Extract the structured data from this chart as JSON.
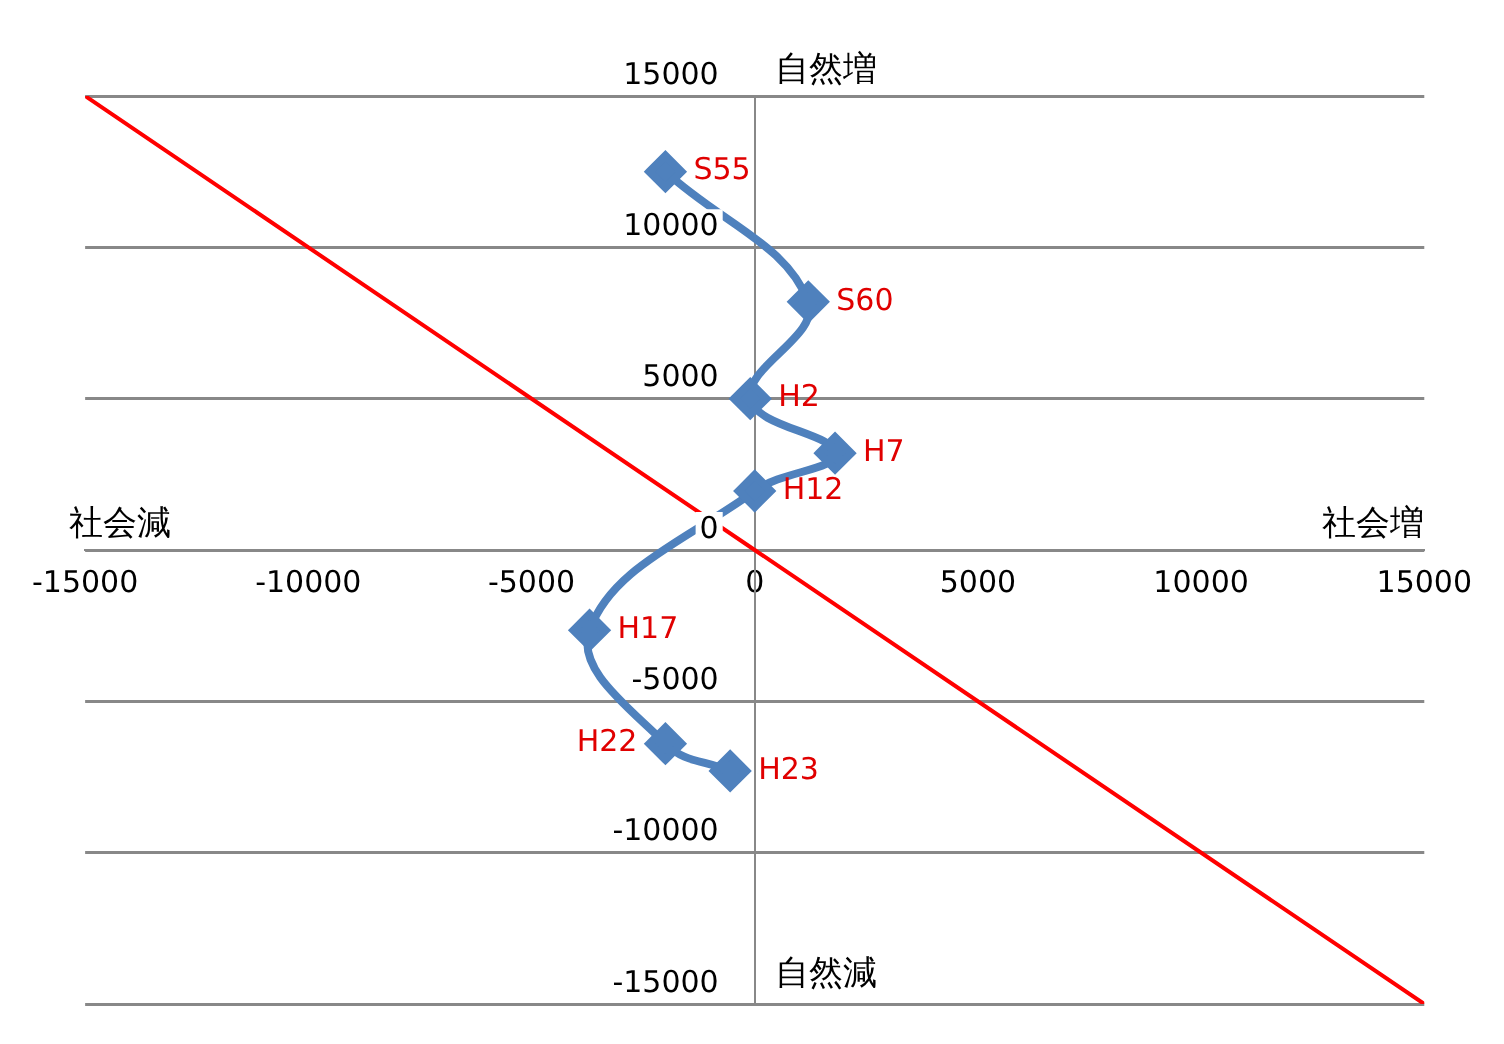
{
  "chart_data": {
    "type": "scatter",
    "xlabel": "社会増",
    "ylabel": "自然増",
    "annotations": [
      "社会減",
      "自然減",
      {
        "text": "S55",
        "x": -2000,
        "y": 12500
      },
      {
        "text": "S60",
        "x": 1200,
        "y": 8200
      },
      {
        "text": "H2",
        "x": -100,
        "y": 5000
      },
      {
        "text": "H7",
        "x": 1800,
        "y": 3200
      },
      {
        "text": "H12",
        "x": 0,
        "y": 1950
      },
      {
        "text": "H17",
        "x": -3700,
        "y": -2650
      },
      {
        "text": "H22",
        "x": -2000,
        "y": -6400
      },
      {
        "text": "H23",
        "x": -550,
        "y": -7300
      }
    ],
    "series": [
      {
        "type": "line",
        "color": "#4f81bd",
        "marker": "diamond",
        "x": [
          -2000,
          1200,
          -100,
          1800,
          0,
          -3700,
          -2000,
          -550
        ],
        "values": [
          12500,
          8200,
          5000,
          3200,
          1950,
          -2650,
          -6400,
          -7300
        ]
      },
      {
        "type": "line",
        "color": "#ff0000",
        "marker": "none",
        "x": [
          -15000,
          15000
        ],
        "values": [
          15000,
          -15000
        ]
      }
    ],
    "xlim": [
      -15000,
      15000
    ],
    "xticks": [
      -15000,
      -10000,
      -5000,
      0,
      5000,
      10000,
      15000
    ],
    "ylim": [
      -15000,
      15000
    ],
    "yticks": [
      -15000,
      -10000,
      -5000,
      0,
      5000,
      10000,
      15000
    ],
    "grid": "y",
    "legend": false
  }
}
